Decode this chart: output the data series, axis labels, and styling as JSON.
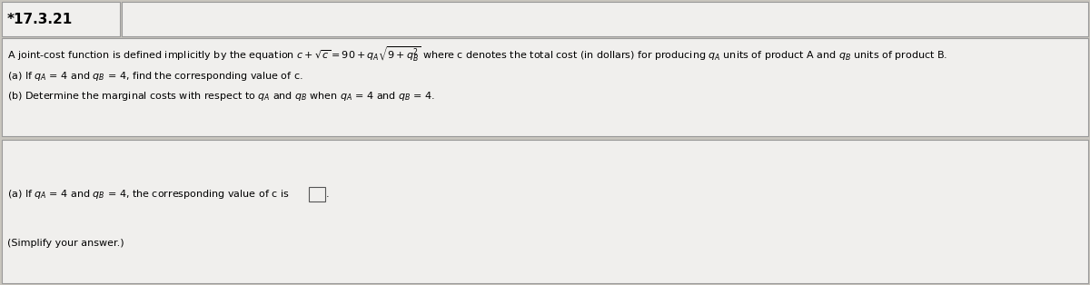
{
  "title": "*17.3.21",
  "background_color": "#c8c5be",
  "box_color": "#f0efed",
  "title_box_color": "#f0efed",
  "line1a": "A joint-cost function is defined implicitly by the equation c + ",
  "line1b": " = 90 + q",
  "line1c": "9 + q",
  "line1d": " where c denotes the total cost (in dollars) for producing q",
  "line1e": " units of product A and q",
  "line1f": " units of product B.",
  "line2": "(a) If qₐ = 4 and qᴮ = 4, find the corresponding value of c.",
  "line3": "(b) Determine the marginal costs with respect to qₐ and qᴮ when qₐ = 4 and qᴮ = 4.",
  "line4pre": "(a) If qₐ = 4 and qᴮ = 4, the corresponding value of c is",
  "line5": "(Simplify your answer.)",
  "font_size_title": 11,
  "font_size_body": 8.0
}
